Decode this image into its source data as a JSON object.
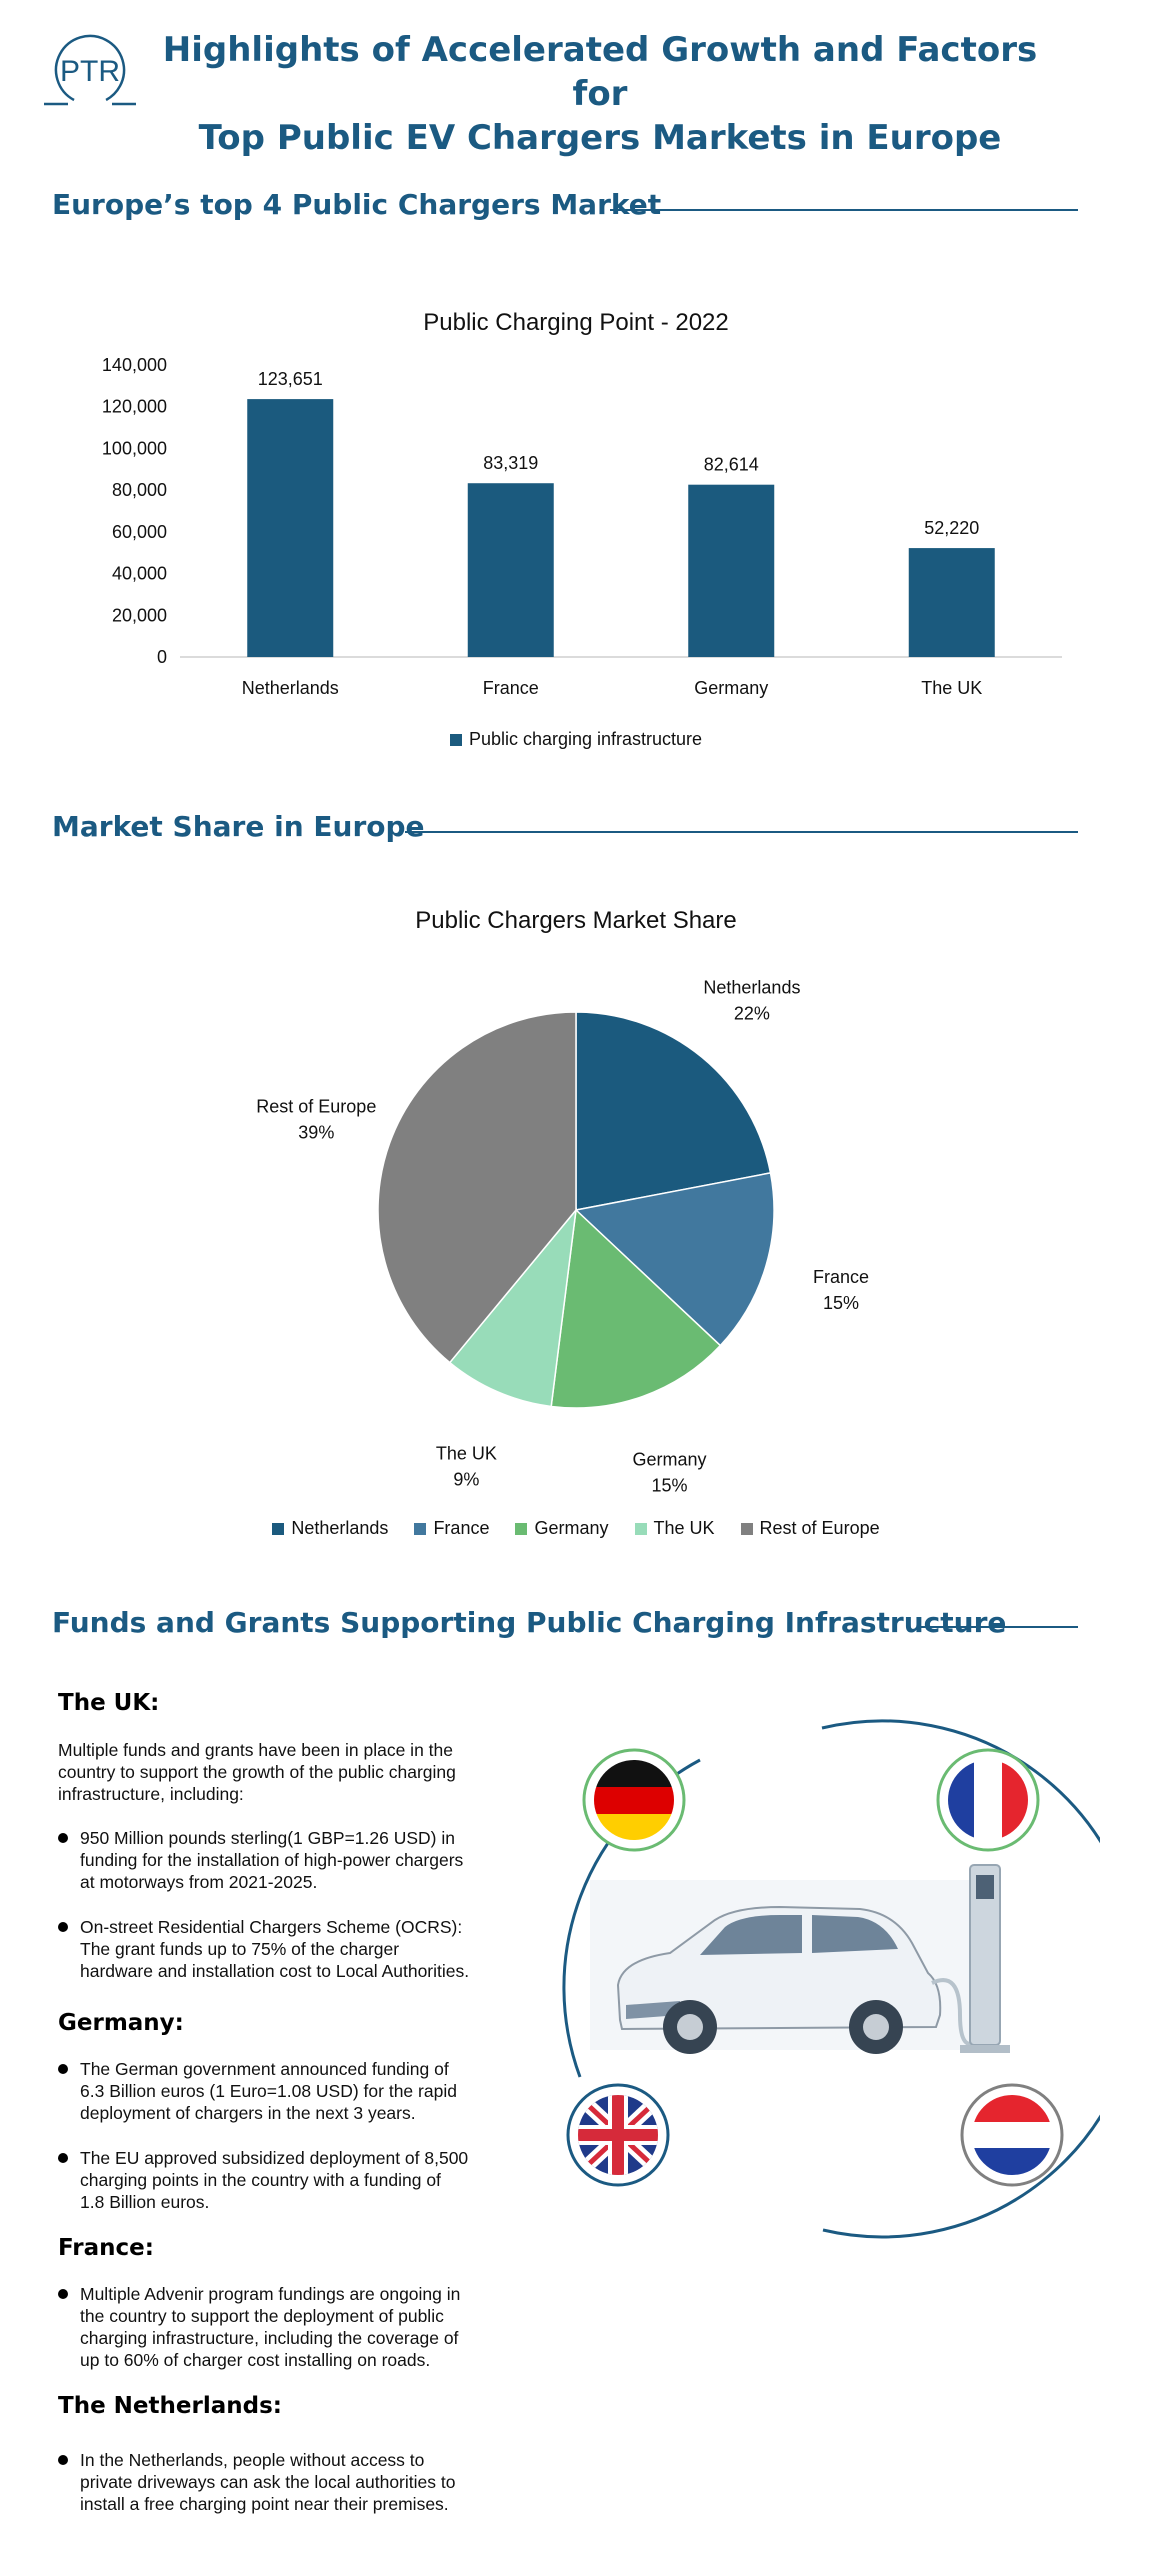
{
  "header": {
    "logo_text": "PTR",
    "title_line1": "Highlights of Accelerated Growth and Factors for",
    "title_line2": "Top Public EV Chargers Markets in Europe"
  },
  "sections": {
    "top4": "Europe’s top 4 Public Chargers Market",
    "share": "Market Share in Europe",
    "funds": "Funds and Grants Supporting Public Charging Infrastructure"
  },
  "colors": {
    "brand": "#1b5a82",
    "netherlands": "#1b5a7e",
    "france": "#41789e",
    "germany": "#6abb72",
    "uk": "#98dcb9",
    "rest": "#808080"
  },
  "chart_data": [
    {
      "type": "bar",
      "title": "Public Charging Point - 2022",
      "categories": [
        "Netherlands",
        "France",
        "Germany",
        "The UK"
      ],
      "series": [
        {
          "name": "Public charging infrastructure",
          "values": [
            123651,
            83319,
            82614,
            52220
          ]
        }
      ],
      "data_labels": [
        "123,651",
        "83,319",
        "82,614",
        "52,220"
      ],
      "yticks": [
        "0",
        "20,000",
        "40,000",
        "60,000",
        "80,000",
        "100,000",
        "120,000",
        "140,000"
      ],
      "ylim": [
        0,
        140000
      ],
      "legend": "bottom",
      "grid": false
    },
    {
      "type": "pie",
      "title": "Public Chargers Market Share",
      "labels": [
        "Netherlands",
        "France",
        "Germany",
        "The UK",
        "Rest of Europe"
      ],
      "values": [
        22,
        15,
        15,
        9,
        39
      ],
      "value_labels": [
        "22%",
        "15%",
        "15%",
        "9%",
        "39%"
      ],
      "legend": "bottom"
    }
  ],
  "funds": {
    "uk": {
      "heading": "The UK:",
      "intro_lines": [
        "Multiple funds and grants have been in place in the",
        "country to support the growth of the public charging",
        "infrastructure, including:"
      ],
      "bullets": [
        [
          "950 Million pounds sterling(1 GBP=1.26 USD) in",
          "funding for the installation of high-power chargers",
          "at motorways from 2021-2025."
        ],
        [
          "On-street Residential Chargers Scheme (OCRS):",
          "The grant funds up to 75% of the charger",
          "hardware and installation cost to Local Authorities."
        ]
      ]
    },
    "germany": {
      "heading": "Germany:",
      "bullets": [
        [
          "The German government announced funding of",
          "6.3 Billion euros (1 Euro=1.08 USD) for the rapid",
          "deployment of chargers in the next 3 years."
        ],
        [
          "The EU approved subsidized deployment of 8,500",
          "charging points in the country with a funding of",
          "1.8 Billion euros."
        ]
      ]
    },
    "france": {
      "heading": "France:",
      "bullets": [
        [
          "Multiple Advenir program fundings are ongoing in",
          "the country to support the deployment of public",
          "charging infrastructure, including the coverage of",
          "up to 60% of charger cost installing on roads."
        ]
      ]
    },
    "netherlands": {
      "heading": "The Netherlands:",
      "bullets": [
        [
          "In the Netherlands, people without access to",
          "private driveways can ask the local authorities to",
          "install a free charging point near their premises."
        ]
      ]
    }
  }
}
